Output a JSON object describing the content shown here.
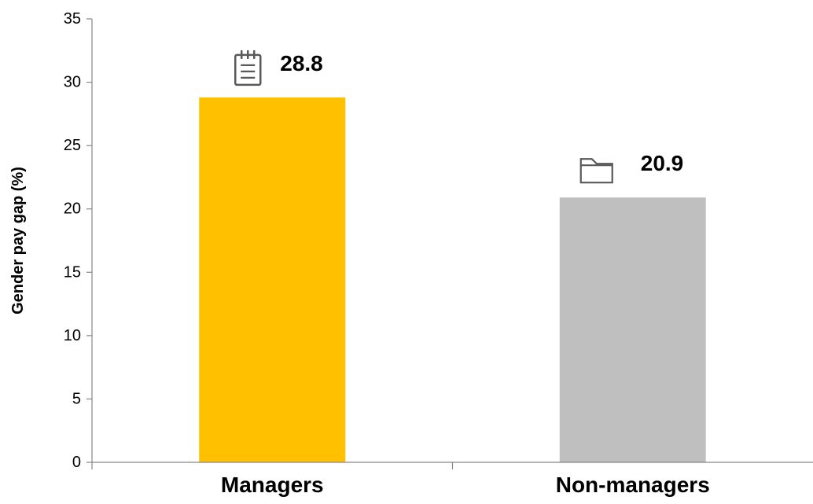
{
  "chart_data": {
    "type": "bar",
    "categories": [
      "Managers",
      "Non-managers"
    ],
    "values": [
      28.8,
      20.9
    ],
    "value_labels": [
      "28.8",
      "20.9"
    ],
    "title": "",
    "xlabel": "",
    "ylabel": "Gender pay gap (%)",
    "ylim": [
      0,
      35
    ],
    "yticks": [
      0,
      5,
      10,
      15,
      20,
      25,
      30,
      35
    ],
    "grid": false,
    "legend": "none",
    "colors": [
      "#FFC000",
      "#BFBFBF"
    ],
    "label_icons": [
      "notepad-icon",
      "folder-icon"
    ]
  }
}
